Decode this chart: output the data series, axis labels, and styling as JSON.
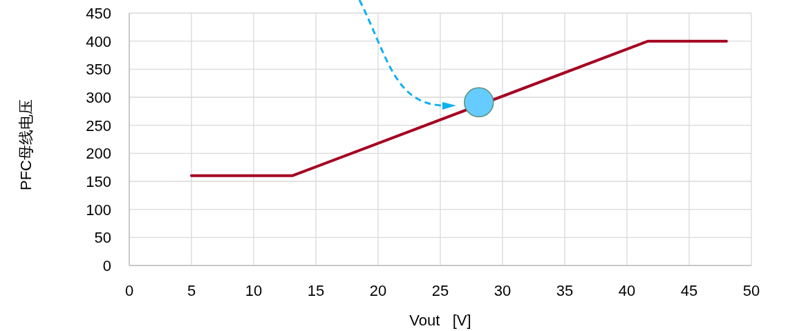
{
  "chart_data": {
    "type": "line",
    "xlabel": "Vout   [V]",
    "ylabel": "PFC母线电压",
    "xlim": [
      0,
      50
    ],
    "xticks": [
      0,
      5,
      10,
      15,
      20,
      25,
      30,
      35,
      40,
      45,
      50
    ],
    "ylim": [
      0,
      450
    ],
    "yticks": [
      0,
      50,
      100,
      150,
      200,
      250,
      300,
      350,
      400,
      450
    ],
    "grid": true,
    "series": [
      {
        "color": "#a50021",
        "marker": "none",
        "x": [
          5,
          13.1,
          41.7,
          48
        ],
        "values": [
          160,
          160,
          400,
          400
        ]
      },
      {
        "type": "scatter",
        "color": "#66ccff",
        "marker": "circle",
        "x": [
          28.1
        ],
        "values": [
          291
        ]
      }
    ]
  }
}
